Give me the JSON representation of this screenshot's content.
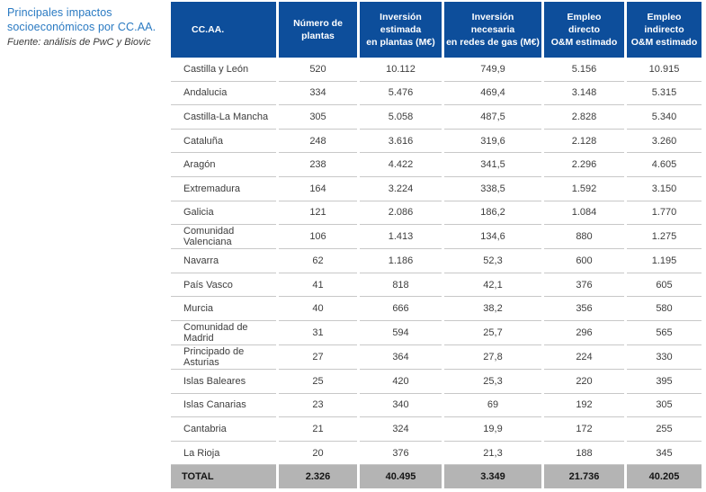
{
  "caption": {
    "title": "Principales impactos socioeconómicos por CC.AA.",
    "source": "Fuente: análisis de PwC y Biovic"
  },
  "colors": {
    "header_bg": "#0d4e9b",
    "header_text": "#ffffff",
    "caption_text": "#2a7ac2",
    "row_separator": "#c8c8c8",
    "total_row_bg": "#b4b4b4",
    "body_text": "#3d3d3d"
  },
  "table": {
    "columns": [
      "CC.AA.",
      "Número de\nplantas",
      "Inversión\nestimada\nen plantas (M€)",
      "Inversión\nnecesaria\nen redes de gas (M€)",
      "Empleo\ndirecto\nO&M estimado",
      "Empleo\nindirecto\nO&M estimado"
    ],
    "rows": [
      {
        "region": "Castilla y León",
        "values": [
          "520",
          "10.112",
          "749,9",
          "5.156",
          "10.915"
        ]
      },
      {
        "region": "Andalucia",
        "values": [
          "334",
          "5.476",
          "469,4",
          "3.148",
          "5.315"
        ]
      },
      {
        "region": "Castilla-La Mancha",
        "values": [
          "305",
          "5.058",
          "487,5",
          "2.828",
          "5.340"
        ]
      },
      {
        "region": "Cataluña",
        "values": [
          "248",
          "3.616",
          "319,6",
          "2.128",
          "3.260"
        ]
      },
      {
        "region": "Aragón",
        "values": [
          "238",
          "4.422",
          "341,5",
          "2.296",
          "4.605"
        ]
      },
      {
        "region": "Extremadura",
        "values": [
          "164",
          "3.224",
          "338,5",
          "1.592",
          "3.150"
        ]
      },
      {
        "region": "Galicia",
        "values": [
          "121",
          "2.086",
          "186,2",
          "1.084",
          "1.770"
        ]
      },
      {
        "region": "Comunidad Valenciana",
        "values": [
          "106",
          "1.413",
          "134,6",
          "880",
          "1.275"
        ]
      },
      {
        "region": "Navarra",
        "values": [
          "62",
          "1.186",
          "52,3",
          "600",
          "1.195"
        ]
      },
      {
        "region": "País Vasco",
        "values": [
          "41",
          "818",
          "42,1",
          "376",
          "605"
        ]
      },
      {
        "region": "Murcia",
        "values": [
          "40",
          "666",
          "38,2",
          "356",
          "580"
        ]
      },
      {
        "region": "Comunidad de Madrid",
        "values": [
          "31",
          "594",
          "25,7",
          "296",
          "565"
        ]
      },
      {
        "region": "Principado de Asturias",
        "values": [
          "27",
          "364",
          "27,8",
          "224",
          "330"
        ]
      },
      {
        "region": "Islas Baleares",
        "values": [
          "25",
          "420",
          "25,3",
          "220",
          "395"
        ]
      },
      {
        "region": "Islas Canarias",
        "values": [
          "23",
          "340",
          "69",
          "192",
          "305"
        ]
      },
      {
        "region": "Cantabria",
        "values": [
          "21",
          "324",
          "19,9",
          "172",
          "255"
        ]
      },
      {
        "region": "La Rioja",
        "values": [
          "20",
          "376",
          "21,3",
          "188",
          "345"
        ]
      }
    ],
    "total": {
      "label": "TOTAL",
      "values": [
        "2.326",
        "40.495",
        "3.349",
        "21.736",
        "40.205"
      ]
    }
  }
}
